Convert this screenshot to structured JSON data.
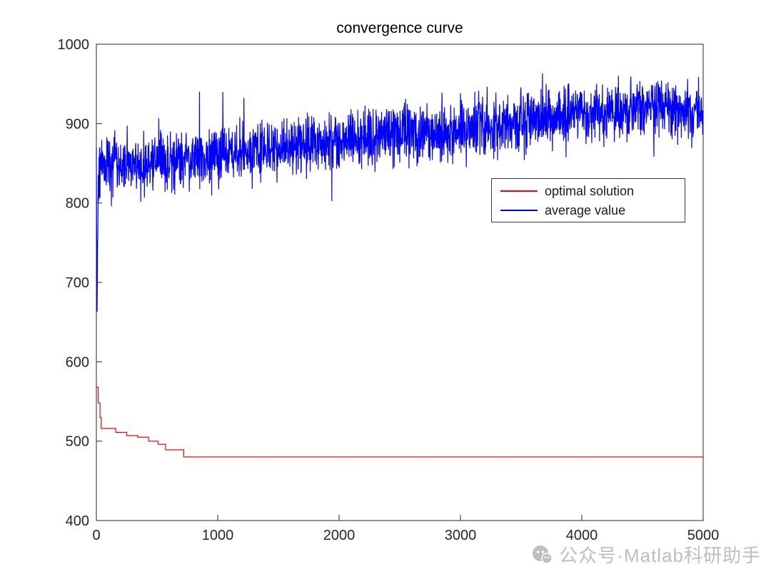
{
  "chart_data": {
    "type": "line",
    "title": "convergence curve",
    "xlabel": "",
    "ylabel": "",
    "xlim": [
      0,
      5000
    ],
    "ylim": [
      400,
      1000
    ],
    "xticks": [
      0,
      1000,
      2000,
      3000,
      4000,
      5000
    ],
    "yticks": [
      400,
      500,
      600,
      700,
      800,
      900,
      1000
    ],
    "grid": false,
    "axis_color": "#262626",
    "legend": {
      "position": "middle-right",
      "border": true
    },
    "series": [
      {
        "name": "optimal solution",
        "color": "#ff0000",
        "style": "step",
        "points": [
          [
            0,
            568
          ],
          [
            15,
            548
          ],
          [
            30,
            530
          ],
          [
            40,
            516
          ],
          [
            150,
            516
          ],
          [
            160,
            511
          ],
          [
            240,
            511
          ],
          [
            250,
            507
          ],
          [
            330,
            507
          ],
          [
            340,
            505
          ],
          [
            420,
            505
          ],
          [
            430,
            500
          ],
          [
            500,
            500
          ],
          [
            510,
            496
          ],
          [
            560,
            496
          ],
          [
            570,
            489
          ],
          [
            700,
            489
          ],
          [
            720,
            480
          ],
          [
            5000,
            480
          ]
        ]
      },
      {
        "name": "average value",
        "color": "#0000ff",
        "style": "noisy",
        "trend": [
          [
            0,
            855
          ],
          [
            6,
            672
          ],
          [
            14,
            830
          ],
          [
            40,
            850
          ],
          [
            300,
            845
          ],
          [
            600,
            852
          ],
          [
            1000,
            860
          ],
          [
            1400,
            868
          ],
          [
            1800,
            875
          ],
          [
            2200,
            882
          ],
          [
            2600,
            888
          ],
          [
            3000,
            893
          ],
          [
            3400,
            902
          ],
          [
            3800,
            910
          ],
          [
            4200,
            916
          ],
          [
            4600,
            920
          ],
          [
            5000,
            916
          ]
        ],
        "noise_amp": 18,
        "spike_chance": 0.02,
        "spike_extra": 60,
        "num_points": 2500,
        "seed": 42
      }
    ]
  },
  "watermark": {
    "text": "公众号·Matlab科研助手",
    "color": "#b3b3b3",
    "icon": "wechat-icon"
  }
}
